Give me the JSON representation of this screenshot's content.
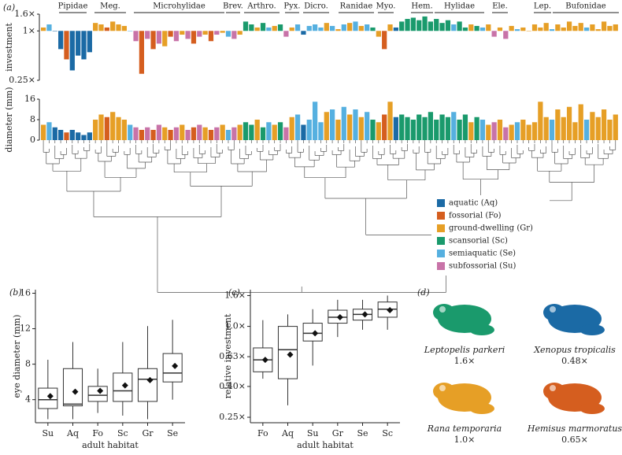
{
  "chart_data": [
    {
      "type": "bar",
      "panel": "(a)",
      "ylabel": "investment",
      "log": true,
      "baseline": 1,
      "ylim": [
        0.25,
        1.6
      ],
      "yticks": [
        {
          "value": 0.25,
          "label": "0.25×"
        },
        {
          "value": 1,
          "label": "1×"
        },
        {
          "value": 1.6,
          "label": "1.6×"
        }
      ],
      "families": [
        "Pipidae",
        "Meg.",
        "Microhylidae",
        "Brev.",
        "Arthro.",
        "Pyx.",
        "Dicro.",
        "Ranidae",
        "Myo.",
        "Hem.",
        "Hylidae",
        "Ele.",
        "Lep.",
        "Bufonidae"
      ],
      "values": [
        1.1,
        1.2,
        1.0,
        0.6,
        0.45,
        0.33,
        0.5,
        0.45,
        0.55,
        1.25,
        1.2,
        1.1,
        1.3,
        1.2,
        1.15,
        1.0,
        0.75,
        0.3,
        0.8,
        0.6,
        0.7,
        0.65,
        0.85,
        0.75,
        0.9,
        0.8,
        0.7,
        0.85,
        0.9,
        0.75,
        0.9,
        0.95,
        0.85,
        0.8,
        0.9,
        1.3,
        1.2,
        1.1,
        1.25,
        1.1,
        1.15,
        1.2,
        0.85,
        1.1,
        1.2,
        0.9,
        1.15,
        1.2,
        1.1,
        1.25,
        1.15,
        1.05,
        1.2,
        1.25,
        1.3,
        1.15,
        1.2,
        1.1,
        0.85,
        0.6,
        1.2,
        1.1,
        1.3,
        1.4,
        1.45,
        1.35,
        1.5,
        1.3,
        1.4,
        1.25,
        1.35,
        1.2,
        1.3,
        1.1,
        1.2,
        1.15,
        1.1,
        1.2,
        0.85,
        1.1,
        0.8,
        1.15,
        1.05,
        1.1,
        1.0,
        1.2,
        1.1,
        1.25,
        1.05,
        1.2,
        1.1,
        1.3,
        1.15,
        1.25,
        1.1,
        1.2,
        1.05,
        1.3,
        1.15,
        1.2
      ],
      "colors": [
        "#e69f26",
        "#56b0e0",
        "#1b6aa5",
        "#1b6aa5",
        "#d55e1f",
        "#1b6aa5",
        "#1b6aa5",
        "#1b6aa5",
        "#1b6aa5",
        "#e69f26",
        "#e69f26",
        "#d55e1f",
        "#e69f26",
        "#e69f26",
        "#e69f26",
        "#56b0e0",
        "#c873a8",
        "#d55e1f",
        "#c873a8",
        "#d55e1f",
        "#c873a8",
        "#e69f26",
        "#d55e1f",
        "#c873a8",
        "#e69f26",
        "#c873a8",
        "#d55e1f",
        "#c873a8",
        "#e69f26",
        "#d55e1f",
        "#c873a8",
        "#e69f26",
        "#56b0e0",
        "#c873a8",
        "#e69f26",
        "#1a9a6c",
        "#1a9a6c",
        "#e69f26",
        "#1a9a6c",
        "#56b0e0",
        "#e69f26",
        "#1a9a6c",
        "#c873a8",
        "#e69f26",
        "#56b0e0",
        "#1b6aa5",
        "#56b0e0",
        "#56b0e0",
        "#56b0e0",
        "#e69f26",
        "#56b0e0",
        "#e69f26",
        "#56b0e0",
        "#e69f26",
        "#56b0e0",
        "#e69f26",
        "#56b0e0",
        "#1a9a6c",
        "#e69f26",
        "#d55e1f",
        "#e69f26",
        "#1b6aa5",
        "#1a9a6c",
        "#1a9a6c",
        "#1a9a6c",
        "#1a9a6c",
        "#1a9a6c",
        "#1a9a6c",
        "#1a9a6c",
        "#1a9a6c",
        "#1a9a6c",
        "#56b0e0",
        "#1a9a6c",
        "#1a9a6c",
        "#e69f26",
        "#1a9a6c",
        "#56b0e0",
        "#e69f26",
        "#c873a8",
        "#e69f26",
        "#c873a8",
        "#e69f26",
        "#56b0e0",
        "#e69f26",
        "#e69f26",
        "#e69f26",
        "#e69f26",
        "#e69f26",
        "#56b0e0",
        "#e69f26",
        "#e69f26",
        "#e69f26",
        "#e69f26",
        "#e69f26",
        "#56b0e0",
        "#e69f26",
        "#e69f26",
        "#e69f26",
        "#e69f26",
        "#e69f26"
      ]
    },
    {
      "type": "bar",
      "ylabel": "diameter (mm)",
      "log": false,
      "baseline": 0,
      "ylim": [
        0,
        16
      ],
      "yticks": [
        0,
        8,
        16
      ],
      "values": [
        6,
        7,
        5,
        4,
        3,
        4,
        3,
        2,
        3,
        8,
        10,
        9,
        11,
        9,
        8,
        6,
        5,
        4,
        5,
        4,
        6,
        5,
        4,
        5,
        6,
        4,
        5,
        6,
        5,
        4,
        5,
        6,
        4,
        5,
        6,
        7,
        6,
        8,
        5,
        7,
        6,
        7,
        5,
        9,
        10,
        6,
        8,
        15,
        7,
        11,
        12,
        8,
        13,
        10,
        12,
        9,
        11,
        8,
        7,
        10,
        15,
        9,
        10,
        9,
        8,
        10,
        9,
        11,
        8,
        10,
        9,
        11,
        8,
        10,
        7,
        9,
        8,
        6,
        7,
        8,
        5,
        6,
        7,
        8,
        6,
        7,
        15,
        9,
        8,
        12,
        9,
        13,
        7,
        14,
        8,
        11,
        9,
        12,
        8,
        10
      ]
    },
    {
      "type": "box",
      "panel": "(b)",
      "ylabel": "eye diameter (mm)",
      "xlabel": "adult habitat",
      "log": false,
      "categories": [
        "Su",
        "Aq",
        "Fo",
        "Sc",
        "Gr",
        "Se"
      ],
      "ylim": [
        1.4,
        16.4
      ],
      "yticks": [
        4,
        8,
        12,
        16
      ],
      "stats": [
        {
          "low": 1.8,
          "q1": 3.0,
          "median": 4.0,
          "q3": 5.3,
          "high": 8.5,
          "mean": 4.4
        },
        {
          "low": 1.8,
          "q1": 3.3,
          "median": 3.5,
          "q3": 7.5,
          "high": 10.5,
          "mean": 4.9
        },
        {
          "low": 2.5,
          "q1": 3.8,
          "median": 4.5,
          "q3": 5.5,
          "high": 7.5,
          "mean": 5.0
        },
        {
          "low": 2.2,
          "q1": 3.8,
          "median": 5.0,
          "q3": 7.0,
          "high": 10.5,
          "mean": 5.6
        },
        {
          "low": 1.8,
          "q1": 3.8,
          "median": 6.3,
          "q3": 7.5,
          "high": 12.3,
          "mean": 6.2
        },
        {
          "low": 4.0,
          "q1": 6.0,
          "median": 7.0,
          "q3": 9.2,
          "high": 13.0,
          "mean": 7.8
        }
      ]
    },
    {
      "type": "box",
      "panel": "(c)",
      "ylabel": "relative investment",
      "xlabel": "adult habitat",
      "log": true,
      "categories": [
        "Fo",
        "Aq",
        "Su",
        "Gr",
        "Se",
        "Sc"
      ],
      "ylim": [
        0.23,
        1.75
      ],
      "yticks": [
        {
          "value": 0.25,
          "label": "0.25×"
        },
        {
          "value": 0.4,
          "label": "0.40×"
        },
        {
          "value": 0.63,
          "label": "0.63×"
        },
        {
          "value": 1,
          "label": "1.0×"
        },
        {
          "value": 1.6,
          "label": "1.6×"
        }
      ],
      "stats": [
        {
          "low": 0.45,
          "q1": 0.5,
          "median": 0.6,
          "q3": 0.72,
          "high": 1.1,
          "mean": 0.6
        },
        {
          "low": 0.3,
          "q1": 0.45,
          "median": 0.7,
          "q3": 1.0,
          "high": 1.2,
          "mean": 0.65
        },
        {
          "low": 0.55,
          "q1": 0.8,
          "median": 0.9,
          "q3": 1.05,
          "high": 1.3,
          "mean": 0.9
        },
        {
          "low": 0.85,
          "q1": 1.05,
          "median": 1.15,
          "q3": 1.28,
          "high": 1.5,
          "mean": 1.15
        },
        {
          "low": 0.95,
          "q1": 1.1,
          "median": 1.2,
          "q3": 1.3,
          "high": 1.5,
          "mean": 1.2
        },
        {
          "low": 0.95,
          "q1": 1.15,
          "median": 1.3,
          "q3": 1.45,
          "high": 1.6,
          "mean": 1.28
        }
      ]
    },
    {
      "type": "pictogram",
      "panel": "(d)",
      "species": [
        {
          "name": "Leptopelis parkeri",
          "value": 1.6,
          "value_label": "1.6×",
          "color": "#1a9a6c"
        },
        {
          "name": "Xenopus tropicalis",
          "value": 0.48,
          "value_label": "0.48×",
          "color": "#1b6aa5"
        },
        {
          "name": "Rana temporaria",
          "value": 1.0,
          "value_label": "1.0×",
          "color": "#e69f26"
        },
        {
          "name": "Hemisus marmoratus",
          "value": 0.65,
          "value_label": "0.65×",
          "color": "#d55e1f"
        }
      ]
    }
  ],
  "legend": [
    {
      "name": "aquatic (Aq)",
      "color": "#1b6aa5"
    },
    {
      "name": "fossorial (Fo)",
      "color": "#d55e1f"
    },
    {
      "name": "ground-dwelling (Gr)",
      "color": "#e69f26"
    },
    {
      "name": "scansorial (Sc)",
      "color": "#1a9a6c"
    },
    {
      "name": "semiaquatic (Se)",
      "color": "#56b0e0"
    },
    {
      "name": "subfossorial (Su)",
      "color": "#c873a8"
    }
  ]
}
